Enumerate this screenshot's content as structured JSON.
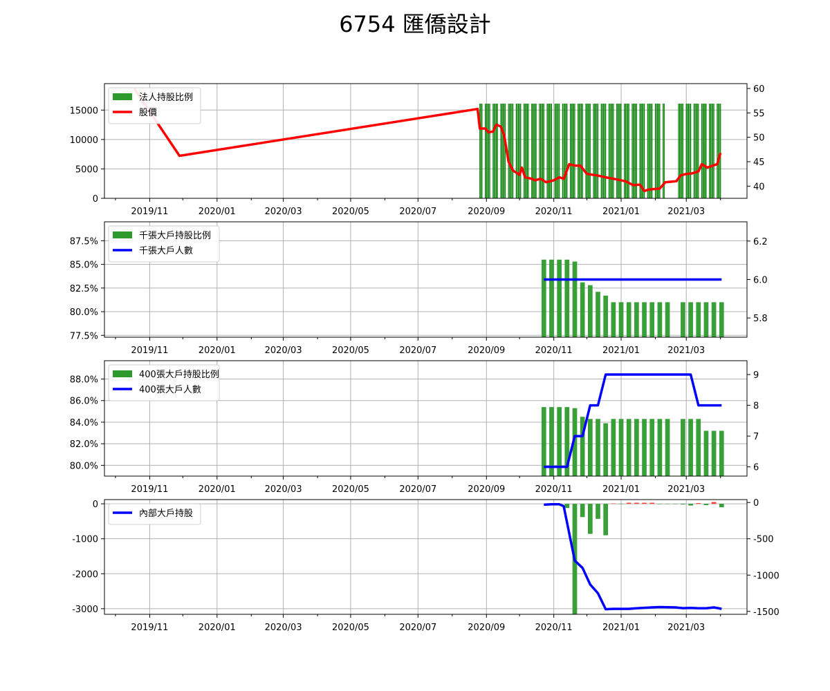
{
  "title": "6754 匯僑設計",
  "colors": {
    "bar_green": "#2e9a2e",
    "bar_dark_green": "#0a7d0a",
    "price_red": "#ff0000",
    "line_blue": "#0000ff",
    "pos_red": "#ff3333",
    "grid": "#b0b0b0"
  },
  "chart_data": [
    {
      "id": "panel1",
      "type": "bar",
      "title": "",
      "x_ticks": [
        "2019/11",
        "2020/01",
        "2020/03",
        "2020/05",
        "2020/07",
        "2020/09",
        "2020/11",
        "2021/01",
        "2021/03"
      ],
      "left_ticks": [
        "0",
        "5000",
        "10000",
        "15000"
      ],
      "right_ticks": [
        "40",
        "45",
        "50",
        "55",
        "60"
      ],
      "ylim_left": [
        0,
        19500
      ],
      "ylim_right": [
        37.5,
        61
      ],
      "legend": [
        "法人持股比例",
        "股價"
      ],
      "bars": {
        "name": "法人持股比例",
        "start": "2020-08-26",
        "end": "2021-04-01",
        "value": 16100
      },
      "price": {
        "name": "股價",
        "values": [
          [
            "2019-10-18",
            60
          ],
          [
            "2019-11-28",
            46.2
          ],
          [
            "2020-08-24",
            55.8
          ],
          [
            "2020-08-26",
            51.8
          ],
          [
            "2020-08-31",
            51.8
          ],
          [
            "2020-09-03",
            51
          ],
          [
            "2020-09-07",
            51.2
          ],
          [
            "2020-09-10",
            52.6
          ],
          [
            "2020-09-14",
            52.2
          ],
          [
            "2020-09-17",
            50.5
          ],
          [
            "2020-09-21",
            45
          ],
          [
            "2020-09-25",
            43.2
          ],
          [
            "2020-10-01",
            42.3
          ],
          [
            "2020-10-03",
            43.8
          ],
          [
            "2020-10-06",
            41.8
          ],
          [
            "2020-10-12",
            41.5
          ],
          [
            "2020-10-15",
            41.2
          ],
          [
            "2020-10-20",
            41.5
          ],
          [
            "2020-10-25",
            40.8
          ],
          [
            "2020-11-01",
            41.2
          ],
          [
            "2020-11-06",
            41.8
          ],
          [
            "2020-11-10",
            41.5
          ],
          [
            "2020-11-15",
            44.5
          ],
          [
            "2020-11-20",
            44.2
          ],
          [
            "2020-11-25",
            44.2
          ],
          [
            "2020-12-01",
            42.5
          ],
          [
            "2020-12-10",
            42.2
          ],
          [
            "2020-12-18",
            41.8
          ],
          [
            "2020-12-25",
            41.5
          ],
          [
            "2021-01-05",
            41
          ],
          [
            "2021-01-12",
            40.2
          ],
          [
            "2021-01-18",
            40.3
          ],
          [
            "2021-01-22",
            39
          ],
          [
            "2021-01-26",
            39.3
          ],
          [
            "2021-02-05",
            39.5
          ],
          [
            "2021-02-10",
            40.8
          ],
          [
            "2021-02-20",
            41
          ],
          [
            "2021-02-24",
            42.2
          ],
          [
            "2021-03-01",
            42.5
          ],
          [
            "2021-03-06",
            42.6
          ],
          [
            "2021-03-12",
            43
          ],
          [
            "2021-03-15",
            44.5
          ],
          [
            "2021-03-20",
            43.8
          ],
          [
            "2021-03-25",
            44.2
          ],
          [
            "2021-03-29",
            44.5
          ],
          [
            "2021-04-01",
            46.8
          ]
        ]
      }
    },
    {
      "id": "panel2",
      "type": "bar",
      "title": "",
      "x_ticks": [
        "2019/11",
        "2020/01",
        "2020/03",
        "2020/05",
        "2020/07",
        "2020/09",
        "2020/11",
        "2021/01",
        "2021/03"
      ],
      "left_ticks": [
        "77.5%",
        "80.0%",
        "82.5%",
        "85.0%",
        "87.5%"
      ],
      "right_ticks": [
        "5.8",
        "6.0",
        "6.2"
      ],
      "ylim_left": [
        77.3,
        89.5
      ],
      "ylim_right": [
        5.7,
        6.3
      ],
      "legend": [
        "千張大戶持股比例",
        "千張大戶人數"
      ],
      "bars": {
        "name": "千張大戶持股比例",
        "dates": [
          "2020-10-23",
          "2020-10-30",
          "2020-11-06",
          "2020-11-13",
          "2020-11-20",
          "2020-11-27",
          "2020-12-04",
          "2020-12-11",
          "2020-12-18",
          "2020-12-25",
          "2021-01-01",
          "2021-01-08",
          "2021-01-15",
          "2021-01-22",
          "2021-01-29",
          "2021-02-05",
          "2021-02-12",
          "2021-02-19",
          "2021-02-26",
          "2021-03-05",
          "2021-03-12",
          "2021-03-19",
          "2021-03-26",
          "2021-04-02"
        ],
        "values": [
          85.5,
          85.5,
          85.5,
          85.5,
          85.3,
          83.1,
          82.8,
          82.1,
          81.7,
          81.0,
          81.0,
          81.0,
          81.0,
          81.0,
          81.0,
          81.0,
          81.0,
          null,
          81.0,
          81.0,
          81.0,
          81.0,
          81.0,
          81.0
        ]
      },
      "line": {
        "name": "千張大戶人數",
        "values": [
          [
            "2020-10-23",
            6
          ],
          [
            "2021-04-02",
            6
          ]
        ]
      }
    },
    {
      "id": "panel3",
      "type": "bar",
      "title": "",
      "x_ticks": [
        "2019/11",
        "2020/01",
        "2020/03",
        "2020/05",
        "2020/07",
        "2020/09",
        "2020/11",
        "2021/01",
        "2021/03"
      ],
      "left_ticks": [
        "80.0%",
        "82.0%",
        "84.0%",
        "86.0%",
        "88.0%"
      ],
      "right_ticks": [
        "6",
        "7",
        "8",
        "9"
      ],
      "ylim_left": [
        79,
        89.7
      ],
      "ylim_right": [
        5.7,
        9.45
      ],
      "legend": [
        "400張大戶持股比例",
        "400張大戶人數"
      ],
      "bars": {
        "name": "400張大戶持股比例",
        "dates": [
          "2020-10-23",
          "2020-10-30",
          "2020-11-06",
          "2020-11-13",
          "2020-11-20",
          "2020-11-27",
          "2020-12-04",
          "2020-12-11",
          "2020-12-18",
          "2020-12-25",
          "2021-01-01",
          "2021-01-08",
          "2021-01-15",
          "2021-01-22",
          "2021-01-29",
          "2021-02-05",
          "2021-02-12",
          "2021-02-19",
          "2021-02-26",
          "2021-03-05",
          "2021-03-12",
          "2021-03-19",
          "2021-03-26",
          "2021-04-02"
        ],
        "values": [
          85.4,
          85.4,
          85.4,
          85.4,
          85.3,
          84.5,
          84.3,
          84.3,
          83.9,
          84.3,
          84.3,
          84.3,
          84.3,
          84.3,
          84.3,
          84.3,
          84.3,
          null,
          84.3,
          84.3,
          84.3,
          83.2,
          83.2,
          83.2
        ]
      },
      "line": {
        "name": "400張大戶人數",
        "values": [
          [
            "2020-10-23",
            6
          ],
          [
            "2020-11-13",
            6
          ],
          [
            "2020-11-20",
            7
          ],
          [
            "2020-11-27",
            7
          ],
          [
            "2020-12-04",
            8
          ],
          [
            "2020-12-11",
            8
          ],
          [
            "2020-12-18",
            9
          ],
          [
            "2021-03-05",
            9
          ],
          [
            "2021-03-12",
            8
          ],
          [
            "2021-04-02",
            8
          ]
        ]
      }
    },
    {
      "id": "panel4",
      "type": "bar",
      "title": "",
      "x_ticks": [
        "2019/11",
        "2020/01",
        "2020/03",
        "2020/05",
        "2020/07",
        "2020/09",
        "2020/11",
        "2021/01",
        "2021/03"
      ],
      "left_ticks": [
        "-3000",
        "-2000",
        "-1000",
        "0"
      ],
      "right_ticks": [
        "-1500",
        "-1000",
        "-500",
        "0"
      ],
      "ylim_left": [
        -3160,
        120
      ],
      "ylim_right": [
        -1540,
        40
      ],
      "legend": [
        "內部大戶持股"
      ],
      "bars": {
        "name": "",
        "dates": [
          "2020-10-30",
          "2020-11-06",
          "2020-11-13",
          "2020-11-20",
          "2020-11-27",
          "2020-12-04",
          "2020-12-11",
          "2020-12-18",
          "2020-12-25",
          "2021-01-01",
          "2021-01-08",
          "2021-01-15",
          "2021-01-22",
          "2021-01-29",
          "2021-02-05",
          "2021-02-12",
          "2021-02-19",
          "2021-02-26",
          "2021-03-05",
          "2021-03-12",
          "2021-03-19",
          "2021-03-26",
          "2021-04-02"
        ],
        "values": [
          0,
          -5,
          -120,
          -3180,
          -380,
          -860,
          -430,
          -900,
          10,
          0,
          30,
          30,
          30,
          30,
          0,
          0,
          0,
          -20,
          -50,
          20,
          -40,
          50,
          -100
        ]
      },
      "line": {
        "name": "內部大戶持股",
        "values": [
          [
            "2020-10-23",
            -30
          ],
          [
            "2020-10-30",
            -25
          ],
          [
            "2020-11-06",
            -25
          ],
          [
            "2020-11-10",
            -50
          ],
          [
            "2020-11-20",
            -800
          ],
          [
            "2020-11-27",
            -900
          ],
          [
            "2020-12-04",
            -1130
          ],
          [
            "2020-12-11",
            -1250
          ],
          [
            "2020-12-18",
            -1470
          ],
          [
            "2020-12-25",
            -1465
          ],
          [
            "2021-01-01",
            -1465
          ],
          [
            "2021-01-08",
            -1465
          ],
          [
            "2021-01-15",
            -1457
          ],
          [
            "2021-01-29",
            -1445
          ],
          [
            "2021-02-05",
            -1440
          ],
          [
            "2021-02-19",
            -1445
          ],
          [
            "2021-02-26",
            -1455
          ],
          [
            "2021-03-05",
            -1452
          ],
          [
            "2021-03-12",
            -1456
          ],
          [
            "2021-03-19",
            -1456
          ],
          [
            "2021-03-26",
            -1445
          ],
          [
            "2021-04-02",
            -1465
          ]
        ]
      }
    }
  ]
}
